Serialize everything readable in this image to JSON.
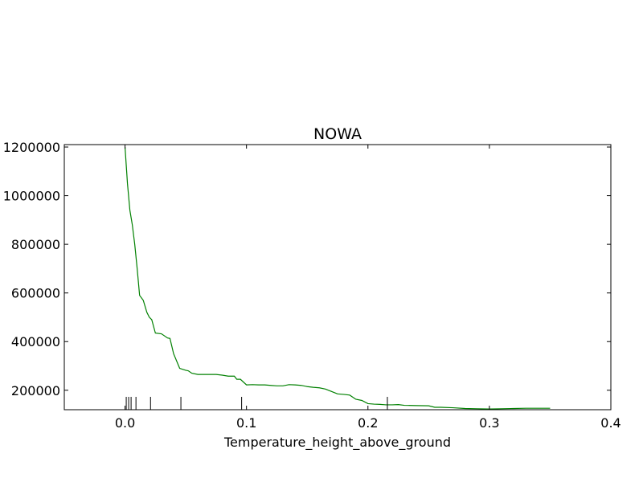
{
  "chart_data": {
    "type": "line",
    "title": "NOWA",
    "xlabel": "Temperature_height_above_ground",
    "ylabel": "",
    "xlim": [
      -0.05,
      0.4
    ],
    "ylim": [
      120000,
      1210000
    ],
    "x_ticks": [
      0.0,
      0.1,
      0.2,
      0.3,
      0.4
    ],
    "x_tick_labels": [
      "0.0",
      "0.1",
      "0.2",
      "0.3",
      "0.4"
    ],
    "y_ticks": [
      200000,
      400000,
      600000,
      800000,
      1000000,
      1200000
    ],
    "y_tick_labels": [
      "200000",
      "400000",
      "600000",
      "800000",
      "1000000",
      "1200000"
    ],
    "line_color": "#008000",
    "series": [
      {
        "name": "NOWA",
        "x": [
          0.0,
          0.002,
          0.004,
          0.006,
          0.008,
          0.01,
          0.012,
          0.015,
          0.018,
          0.02,
          0.022,
          0.025,
          0.03,
          0.035,
          0.037,
          0.04,
          0.045,
          0.05,
          0.052,
          0.055,
          0.06,
          0.07,
          0.075,
          0.08,
          0.085,
          0.09,
          0.092,
          0.095,
          0.1,
          0.105,
          0.11,
          0.115,
          0.12,
          0.125,
          0.13,
          0.135,
          0.14,
          0.145,
          0.15,
          0.155,
          0.16,
          0.165,
          0.17,
          0.175,
          0.18,
          0.185,
          0.19,
          0.195,
          0.2,
          0.205,
          0.21,
          0.215,
          0.22,
          0.225,
          0.23,
          0.24,
          0.25,
          0.255,
          0.26,
          0.27,
          0.28,
          0.29,
          0.3,
          0.31,
          0.32,
          0.33,
          0.34,
          0.35
        ],
        "y": [
          1200000,
          1050000,
          940000,
          880000,
          800000,
          700000,
          590000,
          570000,
          520000,
          500000,
          490000,
          435000,
          432000,
          415000,
          413000,
          350000,
          290000,
          282000,
          280000,
          270000,
          265000,
          265000,
          265000,
          262000,
          258000,
          258000,
          245000,
          245000,
          222000,
          223000,
          222000,
          222000,
          220000,
          218000,
          218000,
          223000,
          222000,
          220000,
          215000,
          212000,
          210000,
          205000,
          195000,
          185000,
          183000,
          180000,
          163000,
          158000,
          145000,
          143000,
          142000,
          140000,
          140000,
          141000,
          138000,
          137000,
          136000,
          130000,
          130000,
          128000,
          125000,
          124000,
          123000,
          124000,
          125000,
          126000,
          126000,
          126000
        ]
      }
    ],
    "rug_x": [
      0.001,
      0.003,
      0.005,
      0.009,
      0.021,
      0.046,
      0.096,
      0.216
    ]
  }
}
